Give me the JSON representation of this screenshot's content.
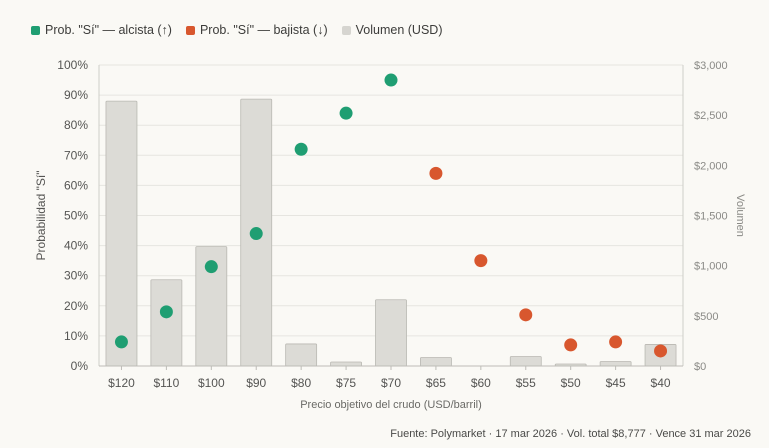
{
  "legend": {
    "items": [
      {
        "label": "Prob. \"Sí\" — alcista (↑)",
        "color": "#1f9e72"
      },
      {
        "label": "Prob. \"Sí\" — bajista (↓)",
        "color": "#d8572e"
      },
      {
        "label": "Volumen (USD)",
        "color": "#d6d5d0"
      }
    ]
  },
  "source": "Fuente: Polymarket · 17 mar 2026 · Vol. total $8,777 · Vence 31 mar 2026",
  "chart_data": {
    "type": "bar+scatter",
    "xlabel": "Precio objetivo del crudo (USD/barril)",
    "ylabel_left": "Probabilidad \"Sí\"",
    "ylabel_right": "Volumen",
    "ylim_left": [
      0,
      100
    ],
    "ylim_right": [
      0,
      3000
    ],
    "yticks_left": [
      "0%",
      "10%",
      "20%",
      "30%",
      "40%",
      "50%",
      "60%",
      "70%",
      "80%",
      "90%",
      "100%"
    ],
    "yticks_right": [
      "$0",
      "$500",
      "$1,000",
      "$1,500",
      "$2,000",
      "$2,500",
      "$3,000"
    ],
    "categories": [
      "$120",
      "$110",
      "$100",
      "$90",
      "$80",
      "$75",
      "$70",
      "$65",
      "$60",
      "$55",
      "$50",
      "$45",
      "$40"
    ],
    "volume": [
      2640,
      860,
      1190,
      2660,
      220,
      40,
      660,
      85,
      0,
      95,
      20,
      45,
      215
    ],
    "series": [
      {
        "name": "Prob. \"Sí\" — alcista (↑)",
        "color": "#1f9e72",
        "values": [
          8,
          18,
          33,
          44,
          72,
          84,
          95,
          null,
          null,
          null,
          null,
          null,
          null
        ]
      },
      {
        "name": "Prob. \"Sí\" — bajista (↓)",
        "color": "#d8572e",
        "values": [
          null,
          null,
          null,
          null,
          null,
          null,
          null,
          64,
          35,
          17,
          7,
          8,
          5
        ]
      }
    ],
    "grid": true,
    "legend_position": "top-left"
  }
}
